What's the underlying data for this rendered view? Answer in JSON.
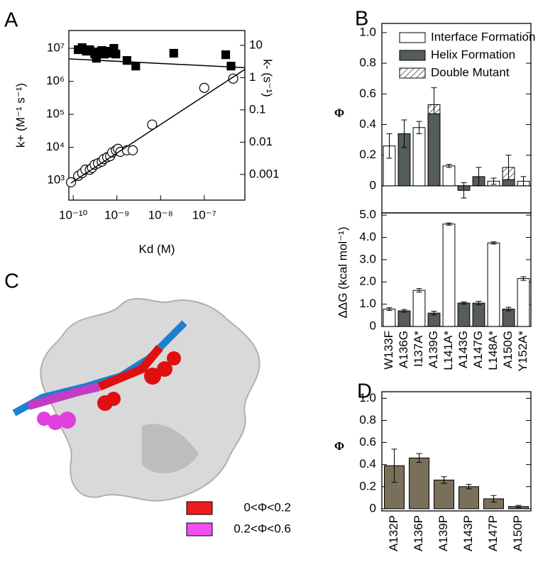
{
  "chart_data": [
    {
      "type": "scatter",
      "panel": "A",
      "xscale": "log",
      "yscale": "log",
      "xlabel": "Kd (M)",
      "ylabel": "k+ (M⁻¹ s⁻¹)",
      "y2label": "k- (s⁻¹)",
      "xlim": [
        7.94e-11,
        8.5e-07
      ],
      "ylim": [
        251,
        34700000
      ],
      "y2lim": [
        0.00016,
        28.8
      ],
      "xticks": [
        {
          "value": 1e-10,
          "label": "10⁻¹⁰"
        },
        {
          "value": 1e-09,
          "label": "10⁻⁹"
        },
        {
          "value": 1e-08,
          "label": "10⁻⁸"
        },
        {
          "value": 1e-07,
          "label": "10⁻⁷"
        }
      ],
      "yticks": [
        {
          "value": 1000,
          "label": "10³"
        },
        {
          "value": 10000,
          "label": "10⁴"
        },
        {
          "value": 100000,
          "label": "10⁵"
        },
        {
          "value": 1000000,
          "label": "10⁶"
        },
        {
          "value": 10000000,
          "label": "10⁷"
        }
      ],
      "y2ticks": [
        0.001,
        0.01,
        0.1,
        1,
        10
      ],
      "series": [
        {
          "marker": "square",
          "color": "#000000",
          "axis": "y",
          "x": [
            1.3e-10,
            1.6e-10,
            2e-10,
            2.4e-10,
            3.1e-10,
            3.4e-10,
            3.8e-10,
            4.5e-10,
            5.2e-10,
            6e-10,
            7e-10,
            8.5e-10,
            9.5e-10,
            1.7e-09,
            2.7e-09,
            2e-08,
            3.1e-07,
            4.1e-07
          ],
          "values": [
            9100000,
            10500000,
            8200000,
            9100000,
            6700000,
            5000000,
            7800000,
            8600000,
            6700000,
            8200000,
            7100000,
            10000000,
            6700000,
            4300000,
            2900000,
            7100000,
            6400000,
            2900000
          ]
        },
        {
          "marker": "circle",
          "color": "#ffffff",
          "axis": "y2",
          "x": [
            8.9e-11,
            1.3e-10,
            1.6e-10,
            1.9e-10,
            2.4e-10,
            2.7e-10,
            3.1e-10,
            3.7e-10,
            4.5e-10,
            5e-10,
            6e-10,
            7e-10,
            7.8e-10,
            9.5e-10,
            1.06e-09,
            1.2e-09,
            1.7e-09,
            2.3e-09,
            6.4e-09,
            1e-07,
            4.6e-07
          ],
          "values": [
            0.00057,
            0.0009,
            0.0011,
            0.0014,
            0.0014,
            0.0016,
            0.002,
            0.0022,
            0.0025,
            0.003,
            0.0034,
            0.0037,
            0.0048,
            0.0056,
            0.0062,
            0.005,
            0.0056,
            0.0056,
            0.035,
            0.48,
            0.93
          ]
        },
        {
          "marker": "line",
          "color": "#000000",
          "axis": "y",
          "x": [
            7.94e-11,
            8.5e-07
          ],
          "values": [
            4800000,
            2600000
          ]
        },
        {
          "marker": "line",
          "color": "#000000",
          "axis": "y2",
          "x": [
            8.9e-11,
            8.5e-07
          ],
          "values": [
            0.00054,
            1.8
          ]
        }
      ]
    },
    {
      "type": "bar",
      "panel": "B",
      "ylabel": "Φ",
      "ylim": [
        -0.177,
        1.06
      ],
      "zero_line": true,
      "legend": "upper-right",
      "yticks": [
        0,
        0.2,
        0.4,
        0.6,
        0.8,
        {
          "value": 1,
          "label": "1.0"
        }
      ],
      "series": [
        {
          "name": "Interface Formation",
          "color": "#ffffff",
          "values": [
            0.26,
            null,
            0.38,
            null,
            0.13,
            null,
            null,
            0.03,
            null,
            0.03
          ],
          "errors": [
            0.08,
            null,
            0.04,
            null,
            0.01,
            null,
            null,
            0.02,
            null,
            0.03
          ]
        },
        {
          "name": "Helix Formation",
          "color": "#555d58",
          "values": [
            null,
            0.34,
            null,
            0.47,
            null,
            -0.03,
            0.06,
            null,
            0.04,
            null
          ],
          "errors": [
            null,
            0.09,
            null,
            null,
            null,
            0.05,
            0.06,
            null,
            null,
            null
          ]
        },
        {
          "name": "Double Mutant",
          "color": "#ffffff",
          "hatch": true,
          "values": [
            null,
            null,
            null,
            0.53,
            null,
            null,
            null,
            null,
            0.12,
            null
          ],
          "errors": [
            null,
            null,
            null,
            0.11,
            null,
            null,
            null,
            null,
            0.08,
            null
          ]
        }
      ]
    },
    {
      "type": "bar",
      "ylabel": "ΔΔG (kcal mol⁻¹)",
      "ylim": [
        0,
        5.1
      ],
      "yticks": [
        0,
        {
          "value": 1,
          "label": "1.0"
        },
        {
          "value": 2,
          "label": "2.0"
        },
        {
          "value": 3,
          "label": "3.0"
        },
        {
          "value": 4,
          "label": "4.0"
        },
        {
          "value": 5,
          "label": "5.0"
        }
      ],
      "categories": [
        "W133F",
        "A136G",
        "I137A*",
        "A139G",
        "L141A*",
        "A143G",
        "A147G",
        "L148A*",
        "A150G",
        "Y152A*"
      ],
      "values": [
        0.78,
        0.7,
        1.62,
        0.6,
        4.6,
        1.05,
        1.05,
        3.75,
        0.78,
        2.15
      ],
      "errors": [
        0.06,
        0.06,
        0.08,
        0.08,
        0.05,
        0.05,
        0.08,
        0.05,
        0.08,
        0.08
      ],
      "colors": [
        "#ffffff",
        "#555d58",
        "#ffffff",
        "#555d58",
        "#ffffff",
        "#555d58",
        "#555d58",
        "#ffffff",
        "#555d58",
        "#ffffff"
      ]
    },
    {
      "type": "bar",
      "panel": "D",
      "ylabel": "Φ",
      "ylim": [
        -0.02,
        1.06
      ],
      "yticks": [
        0,
        0.2,
        0.4,
        0.6,
        0.8,
        {
          "value": 1,
          "label": "1.0"
        }
      ],
      "categories": [
        "A132P",
        "A136P",
        "A139P",
        "A143P",
        "A147P",
        "A150P"
      ],
      "values": [
        0.39,
        0.46,
        0.26,
        0.2,
        0.09,
        0.02
      ],
      "errors": [
        0.15,
        0.04,
        0.03,
        0.02,
        0.03,
        0.01
      ],
      "color": "#7a6f59"
    }
  ],
  "illustration": {
    "panel": "C",
    "legend": [
      {
        "label": "0<Φ<0.2",
        "color": "#ee1c1c"
      },
      {
        "label": "0.2<Φ<0.6",
        "color": "#f050f0"
      }
    ]
  }
}
